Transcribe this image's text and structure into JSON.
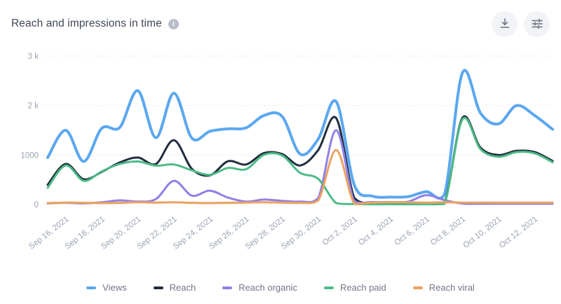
{
  "header": {
    "title": "Reach and impressions in time",
    "info_glyph": "i"
  },
  "toolbar": {
    "download_icon": "download-icon",
    "settings_icon": "sliders-icon"
  },
  "colors": {
    "title_text": "#3f4857",
    "axis_text": "#9aa2b5",
    "legend_text": "#6f7787",
    "gridline": "#dde1e8",
    "button_background": "#f1f3f7",
    "icon_stroke": "#67707e"
  },
  "chart_data": {
    "type": "line",
    "title": "Reach and impressions in time",
    "xlabel": "",
    "ylabel": "",
    "ylim": [
      0,
      3000
    ],
    "grid": "horizontal-dotted",
    "legend_position": "bottom",
    "n_points": 29,
    "x_start_date": "Sep 15, 2021",
    "x_end_date": "Oct 13, 2021",
    "x_tick_day_indices": [
      1,
      3,
      5,
      7,
      9,
      11,
      13,
      15,
      17,
      19,
      21,
      23,
      25,
      27
    ],
    "x_tick_labels": [
      "Sep 16, 2021",
      "Sep 18, 2021",
      "Sep 20, 2021",
      "Sep 22, 2021",
      "Sep 24, 2021",
      "Sep 26, 2021",
      "Sep 28, 2021",
      "Sep 30, 2021",
      "Oct 2, 2021",
      "Oct 4, 2021",
      "Oct 6, 2021",
      "Oct 8, 2021",
      "Oct 10, 2021",
      "Oct 12, 2021"
    ],
    "y_ticks": [
      {
        "value": 0,
        "label": "0"
      },
      {
        "value": 1000,
        "label": "1000"
      },
      {
        "value": 2000,
        "label": "2 k"
      },
      {
        "value": 3000,
        "label": "3 k"
      }
    ],
    "series": [
      {
        "name": "Views",
        "color": "#5BA7F0",
        "line_width": 4,
        "values": [
          950,
          1500,
          870,
          1540,
          1560,
          2300,
          1350,
          2250,
          1340,
          1480,
          1530,
          1550,
          1800,
          1780,
          1020,
          1320,
          2080,
          400,
          170,
          150,
          160,
          260,
          200,
          2660,
          1850,
          1630,
          2000,
          1800,
          1520
        ]
      },
      {
        "name": "Reach",
        "color": "#212D3E",
        "line_width": 3,
        "values": [
          400,
          820,
          510,
          660,
          850,
          950,
          820,
          1300,
          720,
          590,
          875,
          810,
          1040,
          1020,
          790,
          1100,
          1745,
          140,
          25,
          25,
          25,
          30,
          30,
          1750,
          1150,
          1000,
          1085,
          1060,
          880
        ]
      },
      {
        "name": "Reach organic",
        "color": "#8F80E8",
        "line_width": 3,
        "values": [
          25,
          35,
          25,
          45,
          85,
          60,
          110,
          480,
          180,
          280,
          140,
          60,
          100,
          75,
          60,
          130,
          1500,
          70,
          50,
          50,
          60,
          190,
          90,
          20,
          15,
          15,
          15,
          15,
          15
        ]
      },
      {
        "name": "Reach paid",
        "color": "#4DBB86",
        "line_width": 3,
        "values": [
          340,
          790,
          480,
          670,
          820,
          870,
          785,
          810,
          690,
          600,
          740,
          715,
          1005,
          990,
          640,
          520,
          30,
          10,
          5,
          5,
          5,
          5,
          10,
          1720,
          1120,
          965,
          1060,
          1035,
          855
        ]
      },
      {
        "name": "Reach viral",
        "color": "#ECA25F",
        "line_width": 3,
        "values": [
          30,
          40,
          35,
          30,
          35,
          45,
          40,
          45,
          35,
          30,
          35,
          40,
          45,
          40,
          35,
          80,
          1100,
          20,
          40,
          45,
          45,
          40,
          45,
          40,
          40,
          40,
          40,
          40,
          40
        ]
      }
    ]
  }
}
